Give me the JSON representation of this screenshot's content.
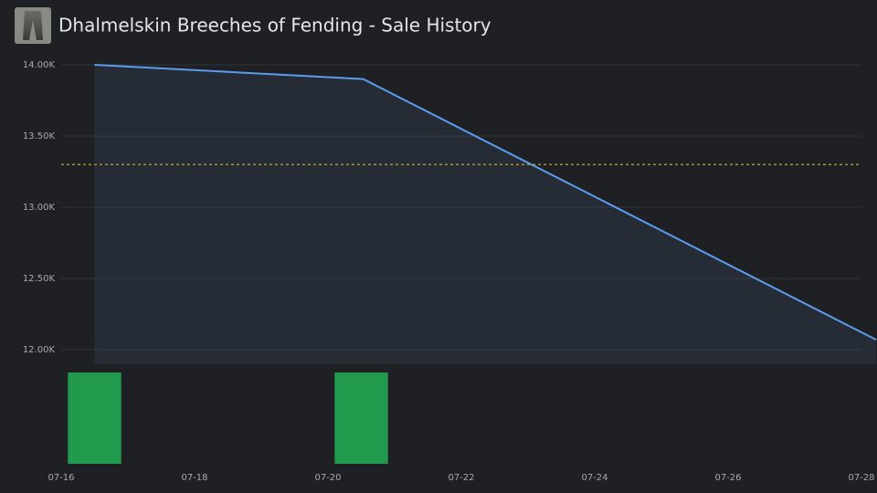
{
  "chart_data": {
    "type": "line",
    "title": "Dhalmelskin Breeches of Fending - Sale History",
    "x": [
      16.5,
      20.53,
      28.22
    ],
    "values": [
      14000,
      13900,
      12070
    ],
    "color": "#5b9cf0",
    "area_color": "rgba(70,100,140,0.18)",
    "reference_line": 13300,
    "reference_color": "#d8b52a",
    "xlim": [
      16,
      28
    ],
    "xticks": [
      {
        "value": 16,
        "label": "07-16"
      },
      {
        "value": 18,
        "label": "07-18"
      },
      {
        "value": 20,
        "label": "07-20"
      },
      {
        "value": 22,
        "label": "07-22"
      },
      {
        "value": 24,
        "label": "07-24"
      },
      {
        "value": 26,
        "label": "07-26"
      },
      {
        "value": 28,
        "label": "07-28"
      }
    ],
    "ylim": [
      11900,
      14000
    ],
    "yticks": [
      {
        "value": 14000,
        "label": "14.00K"
      },
      {
        "value": 13500,
        "label": "13.50K"
      },
      {
        "value": 13000,
        "label": "13.00K"
      },
      {
        "value": 12500,
        "label": "12.50K"
      },
      {
        "value": 12000,
        "label": "12.00K"
      }
    ],
    "grid": true,
    "volume": {
      "type": "bar",
      "x": [
        16.5,
        20.5
      ],
      "values": [
        1,
        1
      ],
      "ylim": [
        0,
        1
      ],
      "color": "#229a4e"
    }
  }
}
